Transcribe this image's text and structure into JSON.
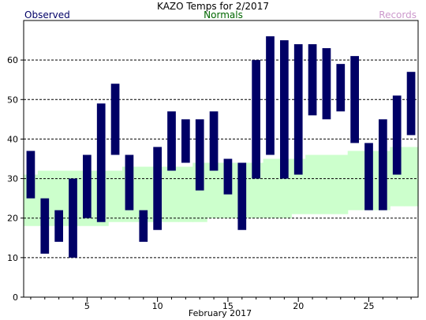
{
  "chart_data": {
    "type": "bar",
    "title": "KAZO Temps for 2/2017",
    "xlabel": "February 2017",
    "ylabel": "",
    "legend": {
      "observed": "Observed",
      "normals": "Normals",
      "records": "Records",
      "placement": "top"
    },
    "colors": {
      "observed": "#000066",
      "normals_band": "#ccffcc",
      "normals_text": "#006600",
      "records_text": "#cc99cc",
      "observed_text": "#000066",
      "grid": "#000000"
    },
    "grid": true,
    "grid_style": "dashed",
    "xlim": [
      0.5,
      28.5
    ],
    "ylim": [
      0,
      70
    ],
    "x_ticks": [
      5,
      10,
      15,
      20,
      25
    ],
    "y_ticks": [
      0,
      10,
      20,
      30,
      40,
      50,
      60
    ],
    "days": [
      1,
      2,
      3,
      4,
      5,
      6,
      7,
      8,
      9,
      10,
      11,
      12,
      13,
      14,
      15,
      16,
      17,
      18,
      19,
      20,
      21,
      22,
      23,
      24,
      25,
      26,
      27,
      28
    ],
    "observed_high": [
      37,
      25,
      22,
      30,
      36,
      49,
      54,
      36,
      22,
      38,
      47,
      45,
      45,
      47,
      35,
      34,
      60,
      66,
      65,
      64,
      64,
      63,
      59,
      61,
      39,
      45,
      51,
      57
    ],
    "observed_low": [
      25,
      11,
      14,
      10,
      20,
      19,
      36,
      22,
      14,
      17,
      32,
      34,
      27,
      32,
      26,
      17,
      30,
      36,
      30,
      31,
      46,
      45,
      47,
      39,
      22,
      22,
      31,
      41
    ],
    "normal_high": [
      31,
      32,
      32,
      32,
      32,
      32,
      32,
      33,
      33,
      33,
      33,
      33,
      34,
      34,
      34,
      34,
      34,
      35,
      35,
      35,
      36,
      36,
      36,
      37,
      37,
      37,
      38,
      38
    ],
    "normal_low": [
      18,
      18,
      18,
      18,
      18,
      18,
      19,
      19,
      19,
      19,
      19,
      19,
      19,
      20,
      20,
      20,
      20,
      20,
      20,
      21,
      21,
      21,
      21,
      22,
      22,
      22,
      23,
      23
    ]
  }
}
